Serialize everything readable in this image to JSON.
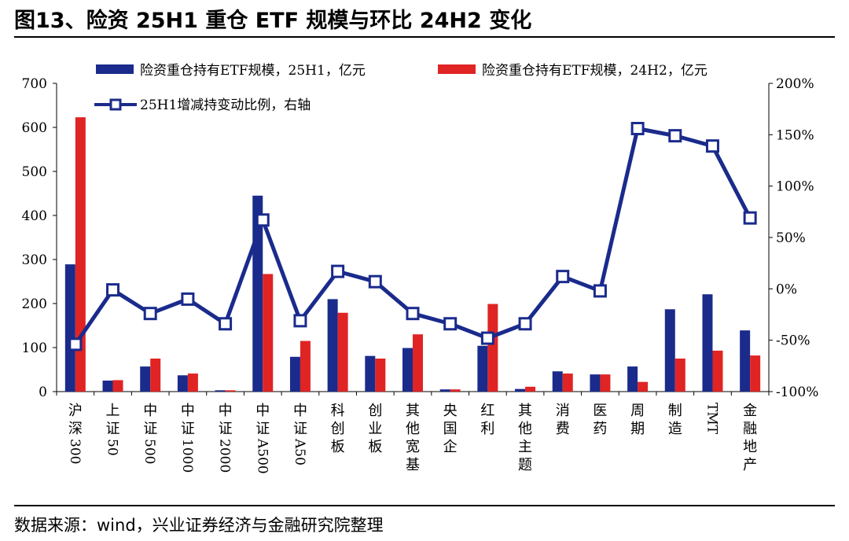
{
  "header": {
    "title": "图13、险资 25H1 重仓 ETF 规模与环比 24H2 变化"
  },
  "footer": {
    "source": "数据来源：wind，兴业证券经济与金融研究院整理"
  },
  "colors": {
    "bar_25h1": "#1a2b8c",
    "bar_24h2": "#e02424",
    "line": "#1a2b8c"
  },
  "chart_data": {
    "type": "bar",
    "categories": [
      [
        "沪",
        "深",
        "300"
      ],
      [
        "上",
        "证",
        "50"
      ],
      [
        "中",
        "证",
        "500"
      ],
      [
        "中",
        "证",
        "1000"
      ],
      [
        "中",
        "证",
        "2000"
      ],
      [
        "中",
        "证",
        "A500"
      ],
      [
        "中",
        "证",
        "A50"
      ],
      [
        "科",
        "创",
        "板"
      ],
      [
        "创",
        "业",
        "板"
      ],
      [
        "其",
        "他",
        "宽",
        "基"
      ],
      [
        "央",
        "国",
        "企"
      ],
      [
        "红",
        "利"
      ],
      [
        "其",
        "他",
        "主",
        "题"
      ],
      [
        "消",
        "费"
      ],
      [
        "医",
        "药"
      ],
      [
        "周",
        "期"
      ],
      [
        "制",
        "造"
      ],
      [
        "TMT"
      ],
      [
        "金",
        "融",
        "地",
        "产"
      ]
    ],
    "series": [
      {
        "name": "险资重仓持有ETF规模，25H1，亿元",
        "type": "bar",
        "axis": "left",
        "values": [
          289,
          25,
          57,
          37,
          3,
          445,
          79,
          210,
          81,
          99,
          5,
          104,
          6,
          46,
          39,
          57,
          187,
          221,
          139
        ]
      },
      {
        "name": "险资重仓持有ETF规模，24H2，亿元",
        "type": "bar",
        "axis": "left",
        "values": [
          623,
          26,
          75,
          41,
          3,
          267,
          115,
          179,
          75,
          130,
          5,
          199,
          11,
          41,
          39,
          22,
          75,
          93,
          82
        ]
      },
      {
        "name": "25H1增减持变动比例，右轴",
        "type": "line",
        "axis": "right",
        "values": [
          -54,
          -1,
          -24,
          -10,
          -34,
          67,
          -31,
          17,
          7,
          -24,
          -34,
          -48,
          -34,
          12,
          -2,
          156,
          149,
          139,
          69
        ]
      }
    ],
    "y_left": {
      "min": 0,
      "max": 700,
      "ticks": [
        "0",
        "100",
        "200",
        "300",
        "400",
        "500",
        "600",
        "700"
      ]
    },
    "y_right": {
      "min": -100,
      "max": 200,
      "ticks": [
        "-100%",
        "-50%",
        "0%",
        "50%",
        "100%",
        "150%",
        "200%"
      ]
    },
    "grid": false,
    "legend": "top"
  }
}
